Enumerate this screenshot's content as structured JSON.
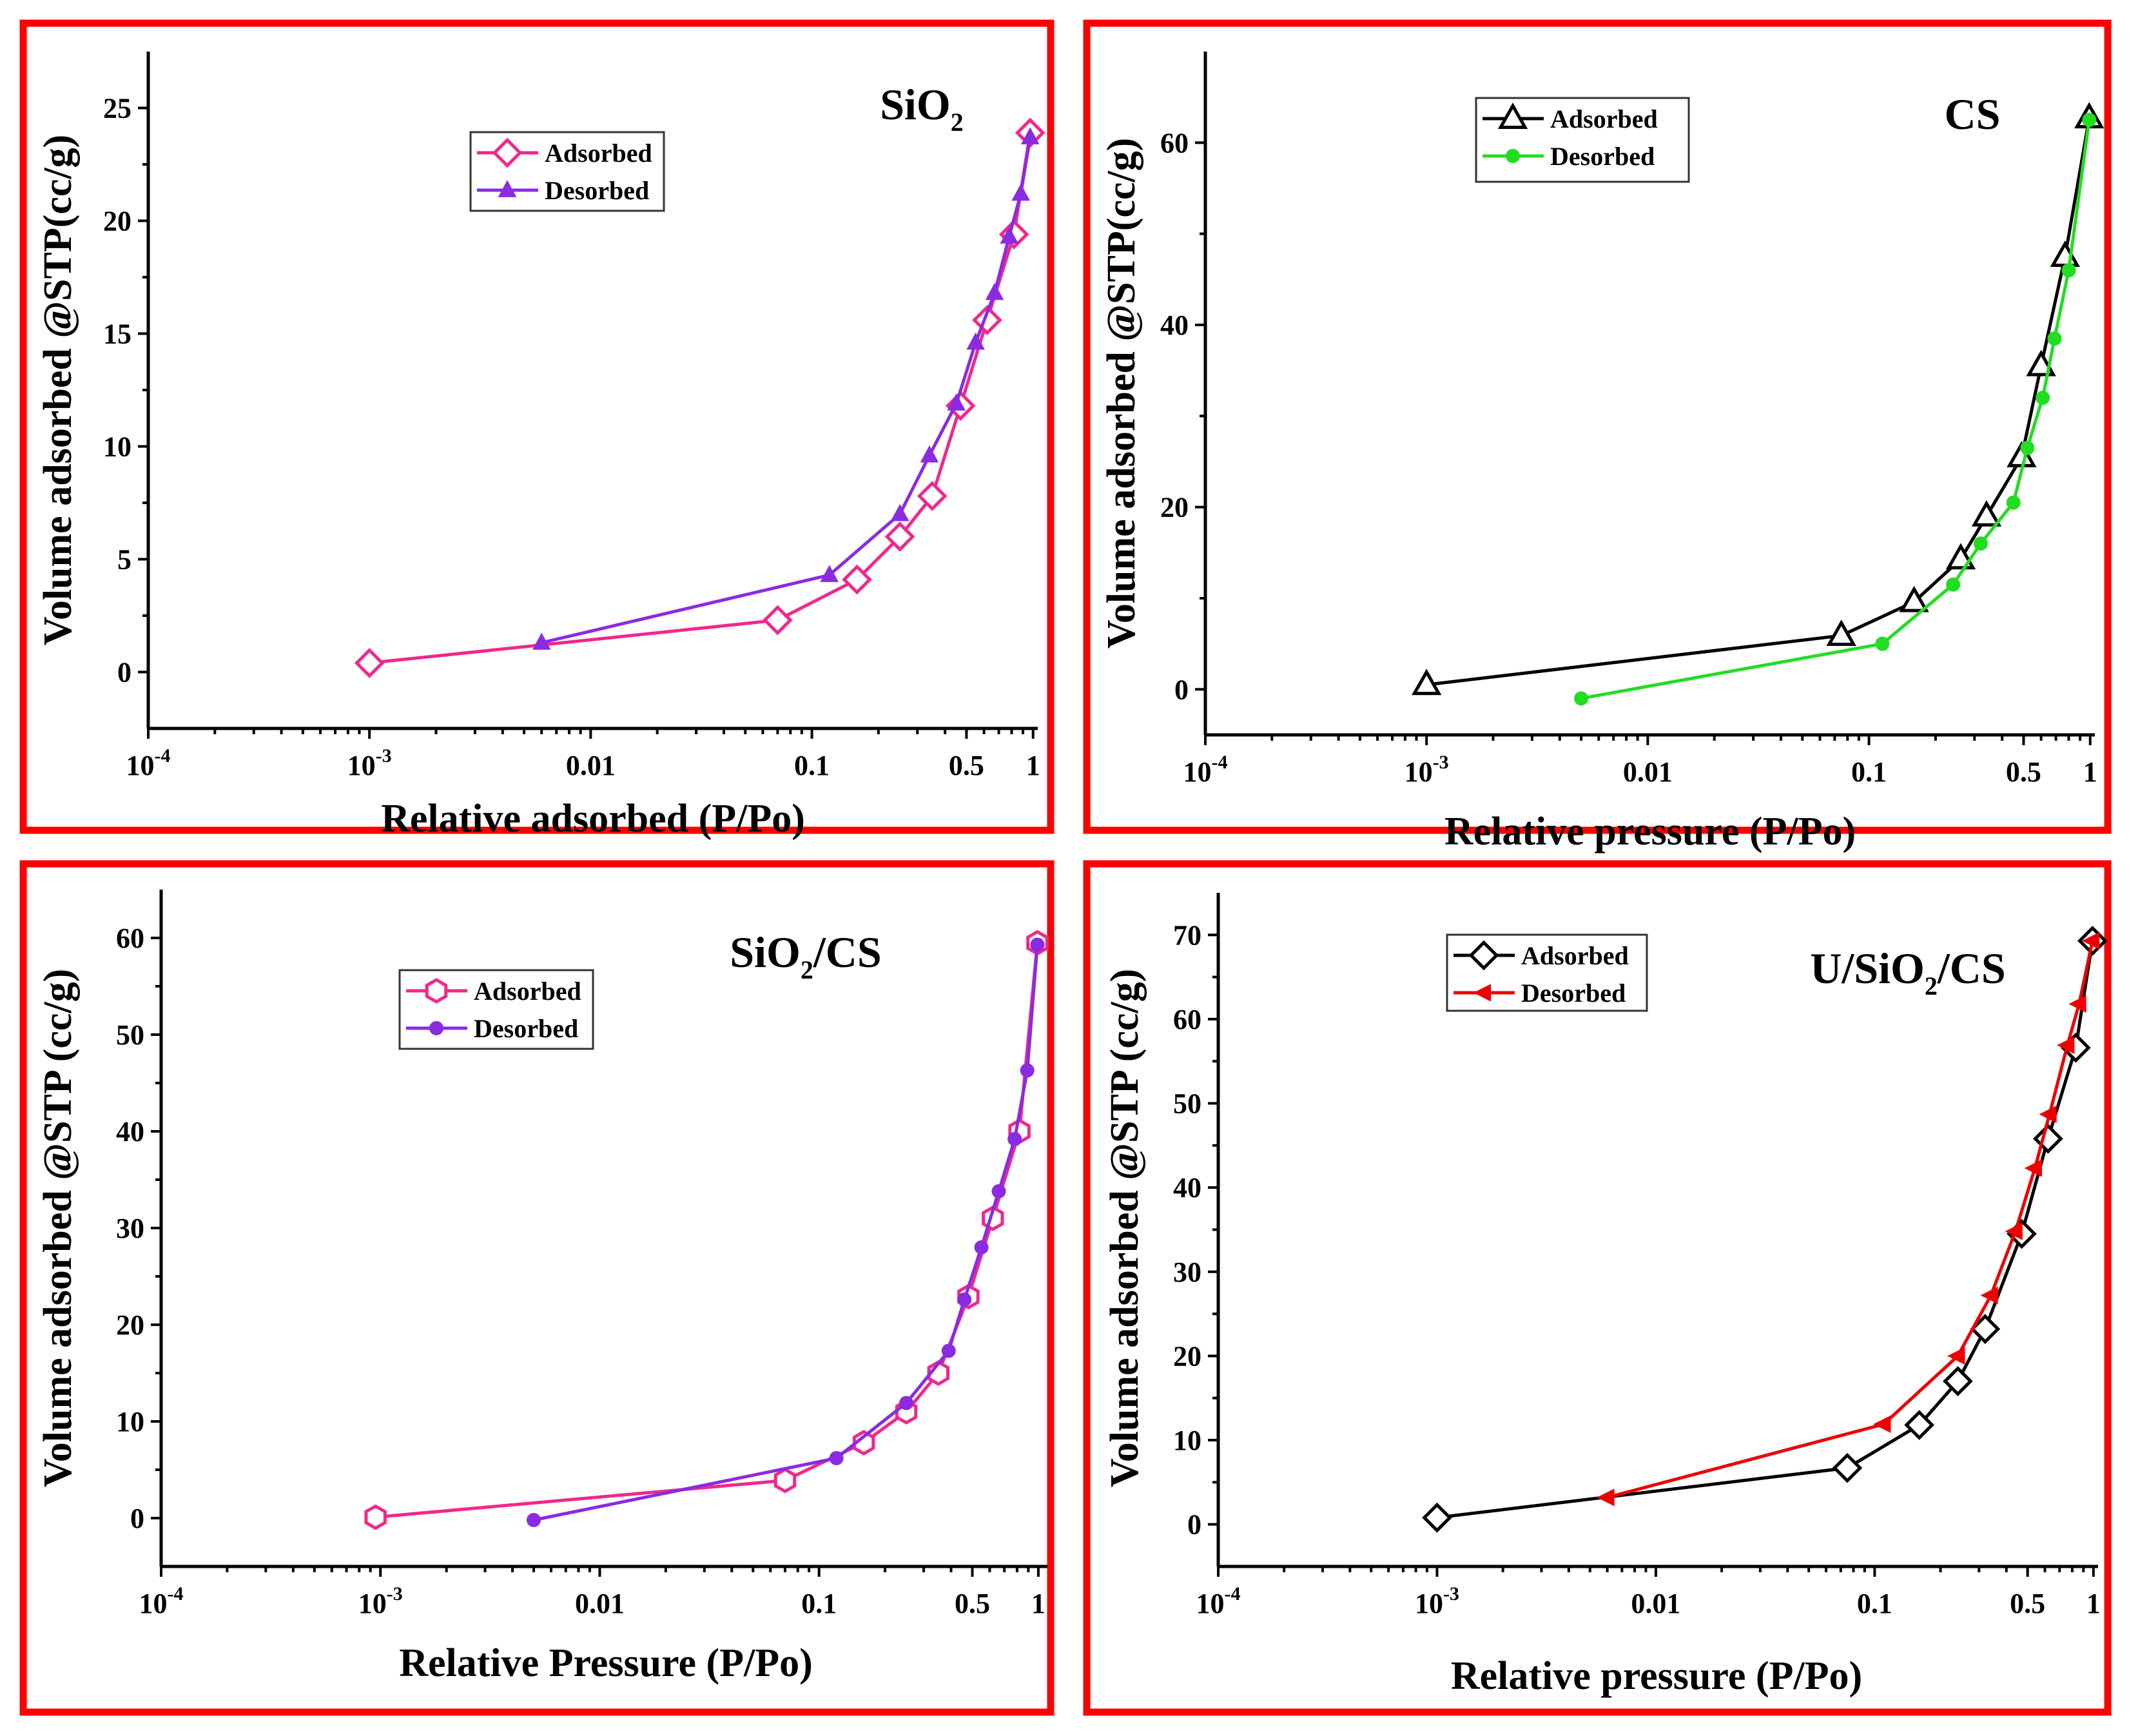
{
  "chart_data": [
    {
      "type": "line",
      "title": "SiO2",
      "title_main": "SiO",
      "title_sub": "2",
      "title_rest": "",
      "xlabel": "Relative adsorbed (P/Po)",
      "ylabel": "Volume adsorbed @STP(cc/g)",
      "xscale": "log",
      "xlim": [
        0.0001,
        1.05
      ],
      "ylim": [
        -2.5,
        27.5
      ],
      "yticks": [
        0,
        5,
        10,
        15,
        20,
        25
      ],
      "ytick_labels": [
        "0",
        "5",
        "10",
        "15",
        "20",
        "25"
      ],
      "xticks": [
        0.0001,
        0.001,
        0.01,
        0.1,
        0.5,
        1
      ],
      "xtick_base": [
        "10",
        "10",
        "0.01",
        "0.1",
        "0.5",
        "1"
      ],
      "xtick_sup": [
        "-4",
        "-3",
        "",
        "",
        "",
        ""
      ],
      "legend_position": "top-center",
      "series": [
        {
          "name": "Adsorbed",
          "color": "#f0288c",
          "marker": "diamond-open",
          "x": [
            0.001,
            0.07,
            0.16,
            0.25,
            0.35,
            0.47,
            0.62,
            0.82,
            0.97
          ],
          "y": [
            0.4,
            2.3,
            4.1,
            6.0,
            7.8,
            11.8,
            15.6,
            19.4,
            23.9
          ]
        },
        {
          "name": "Desorbed",
          "color": "#8a2be2",
          "marker": "triangle-filled",
          "x": [
            0.006,
            0.12,
            0.25,
            0.34,
            0.45,
            0.55,
            0.67,
            0.78,
            0.88,
            0.97
          ],
          "y": [
            1.3,
            4.3,
            7.0,
            9.6,
            11.9,
            14.6,
            16.8,
            19.3,
            21.2,
            23.7
          ]
        }
      ]
    },
    {
      "type": "line",
      "title": "CS",
      "title_main": "CS",
      "title_sub": "",
      "title_rest": "",
      "xlabel": "Relative pressure (P/Po)",
      "ylabel": "Volume adsorbed @STP(cc/g)",
      "xscale": "log",
      "xlim": [
        0.0001,
        1.05
      ],
      "ylim": [
        -5,
        70
      ],
      "yticks": [
        0,
        20,
        40,
        60
      ],
      "ytick_labels": [
        "0",
        "20",
        "40",
        "60"
      ],
      "xticks": [
        0.0001,
        0.001,
        0.01,
        0.1,
        0.5,
        1
      ],
      "xtick_base": [
        "10",
        "10",
        "0.01",
        "0.1",
        "0.5",
        "1"
      ],
      "xtick_sup": [
        "-4",
        "-3",
        "",
        "",
        "",
        ""
      ],
      "legend_position": "top-center",
      "series": [
        {
          "name": "Adsorbed",
          "color": "#000000",
          "marker": "triangle-open",
          "x": [
            0.001,
            0.075,
            0.16,
            0.26,
            0.34,
            0.49,
            0.6,
            0.77,
            0.99
          ],
          "y": [
            0.5,
            5.9,
            9.6,
            14.3,
            19.0,
            25.5,
            35.5,
            47.5,
            62.7
          ]
        },
        {
          "name": "Desorbed",
          "color": "#22dd22",
          "marker": "circle-filled",
          "x": [
            0.005,
            0.115,
            0.24,
            0.32,
            0.45,
            0.52,
            0.61,
            0.69,
            0.8,
            0.99
          ],
          "y": [
            -1.0,
            5.0,
            11.5,
            16.0,
            20.5,
            26.5,
            32.0,
            38.5,
            46.0,
            62.5
          ]
        }
      ]
    },
    {
      "type": "line",
      "title": "SiO2/CS",
      "title_main": "SiO",
      "title_sub": "2",
      "title_rest": "/CS",
      "xlabel": "Relative Pressure (P/Po)",
      "ylabel": "Volume adsorbed @STP (cc/g)",
      "xscale": "log",
      "xlim": [
        0.0001,
        1.1
      ],
      "ylim": [
        -5,
        65
      ],
      "yticks": [
        0,
        10,
        20,
        30,
        40,
        50,
        60
      ],
      "ytick_labels": [
        "0",
        "10",
        "20",
        "30",
        "40",
        "50",
        "60"
      ],
      "xticks": [
        0.0001,
        0.001,
        0.01,
        0.1,
        0.5,
        1
      ],
      "xtick_base": [
        "10",
        "10",
        "0.01",
        "0.1",
        "0.5",
        "1"
      ],
      "xtick_sup": [
        "-4",
        "-3",
        "",
        "",
        "",
        ""
      ],
      "legend_position": "top-center",
      "series": [
        {
          "name": "Adsorbed",
          "color": "#f0288c",
          "marker": "hexagon-open",
          "x": [
            0.00095,
            0.07,
            0.16,
            0.25,
            0.35,
            0.48,
            0.62,
            0.82,
            0.99
          ],
          "y": [
            0.1,
            3.9,
            7.8,
            11.0,
            15.0,
            22.9,
            31.0,
            40.0,
            59.5
          ]
        },
        {
          "name": "Desorbed",
          "color": "#8a2be2",
          "marker": "circle-filled",
          "x": [
            0.005,
            0.12,
            0.25,
            0.39,
            0.46,
            0.55,
            0.66,
            0.78,
            0.89,
            0.99
          ],
          "y": [
            -0.2,
            6.2,
            11.9,
            17.3,
            22.6,
            28.0,
            33.8,
            39.2,
            46.3,
            59.3
          ]
        }
      ]
    },
    {
      "type": "line",
      "title": "U/SiO2/CS",
      "title_main": "U/SiO",
      "title_sub": "2",
      "title_rest": "/CS",
      "xlabel": "Relative pressure (P/Po)",
      "ylabel": "Volume adsorbed @STP (cc/g)",
      "xscale": "log",
      "xlim": [
        0.0001,
        1.05
      ],
      "ylim": [
        -5,
        75
      ],
      "yticks": [
        0,
        10,
        20,
        30,
        40,
        50,
        60,
        70
      ],
      "ytick_labels": [
        "0",
        "10",
        "20",
        "30",
        "40",
        "50",
        "60",
        "70"
      ],
      "xticks": [
        0.0001,
        0.001,
        0.01,
        0.1,
        0.5,
        1
      ],
      "xtick_base": [
        "10",
        "10",
        "0.01",
        "0.1",
        "0.5",
        "1"
      ],
      "xtick_sup": [
        "-4",
        "-3",
        "",
        "",
        "",
        ""
      ],
      "legend_position": "top-left",
      "series": [
        {
          "name": "Adsorbed",
          "color": "#000000",
          "marker": "diamond-open",
          "x": [
            0.001,
            0.075,
            0.16,
            0.24,
            0.32,
            0.47,
            0.62,
            0.83,
            0.99
          ],
          "y": [
            0.8,
            6.7,
            11.8,
            17.0,
            23.2,
            34.5,
            45.8,
            56.6,
            69.3
          ]
        },
        {
          "name": "Desorbed",
          "color": "#ee0000",
          "marker": "arrow-left-filled",
          "x": [
            0.006,
            0.11,
            0.24,
            0.34,
            0.44,
            0.54,
            0.63,
            0.76,
            0.86,
            0.99
          ],
          "y": [
            3.2,
            11.9,
            20.0,
            27.2,
            34.8,
            42.3,
            48.7,
            56.9,
            61.8,
            69.3
          ]
        }
      ]
    }
  ]
}
